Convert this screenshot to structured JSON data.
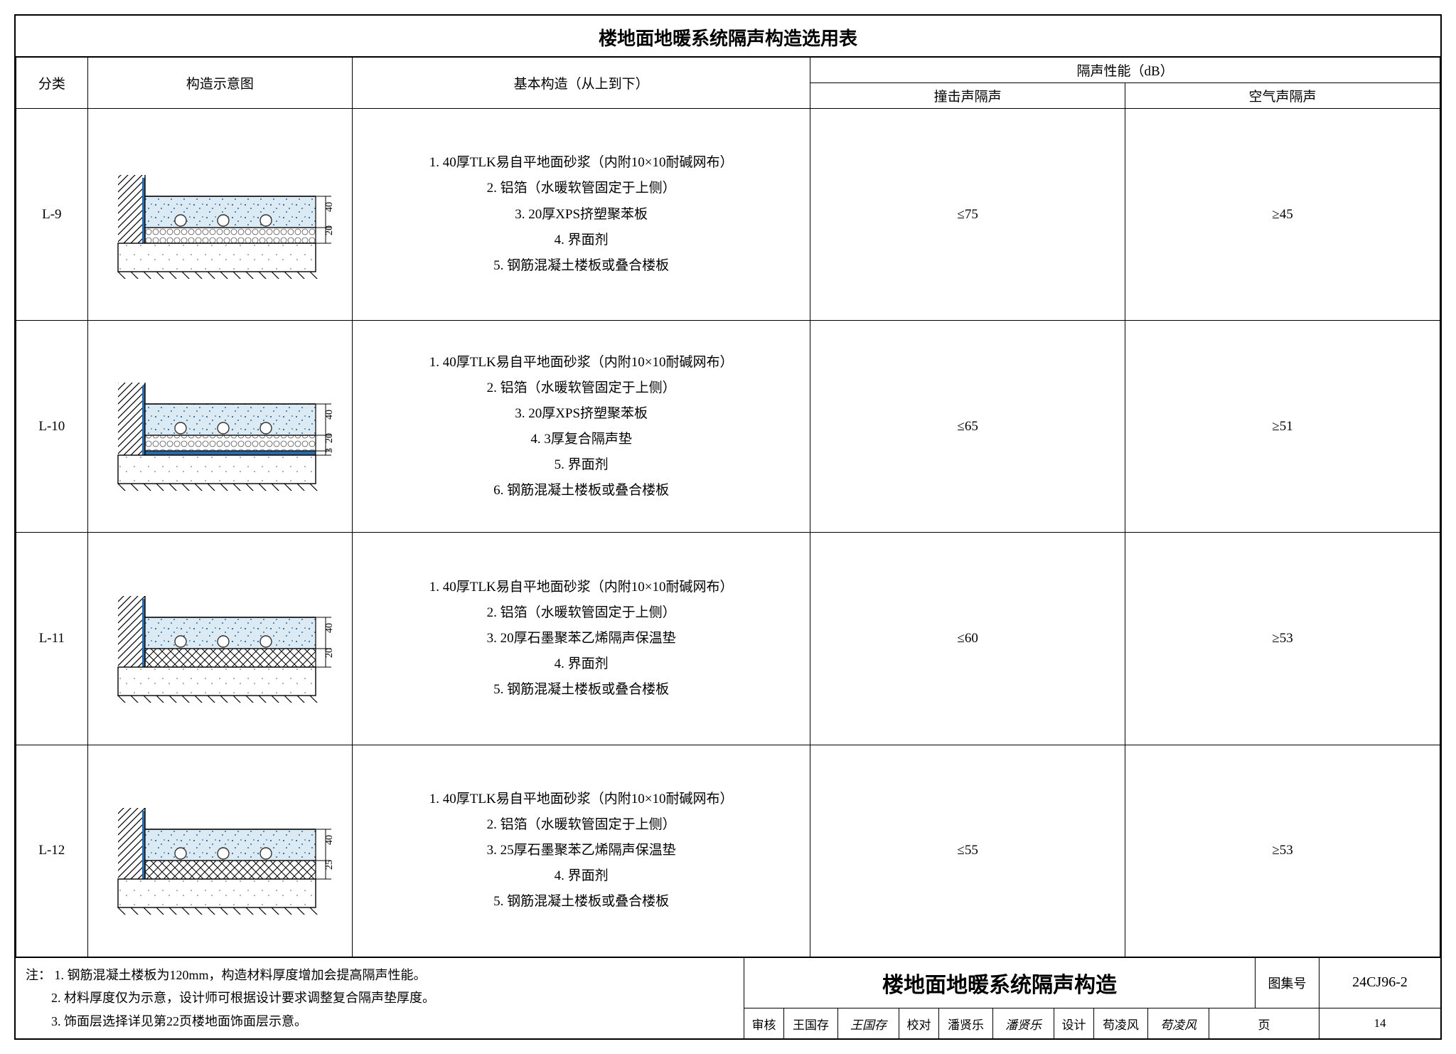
{
  "title": "楼地面地暖系统隔声构造选用表",
  "headers": {
    "category": "分类",
    "diagram": "构造示意图",
    "construction": "基本构造（从上到下）",
    "perf_group": "隔声性能（dB）",
    "impact": "撞击声隔声",
    "air": "空气声隔声"
  },
  "rows": [
    {
      "id": "L-9",
      "items": [
        "1. 40厚TLK易自平地面砂浆（内附10×10耐碱网布）",
        "2. 铝箔（水暖软管固定于上侧）",
        "3. 20厚XPS挤塑聚苯板",
        "4. 界面剂",
        "5. 钢筋混凝土楼板或叠合楼板"
      ],
      "impact": "≤75",
      "air": "≥45",
      "dims": [
        "40",
        "20"
      ],
      "layers": [
        "mortar",
        "xps"
      ]
    },
    {
      "id": "L-10",
      "items": [
        "1. 40厚TLK易自平地面砂浆（内附10×10耐碱网布）",
        "2. 铝箔（水暖软管固定于上侧）",
        "3. 20厚XPS挤塑聚苯板",
        "4. 3厚复合隔声垫",
        "5. 界面剂",
        "6. 钢筋混凝土楼板或叠合楼板"
      ],
      "impact": "≤65",
      "air": "≥51",
      "dims": [
        "40",
        "20",
        "3"
      ],
      "layers": [
        "mortar",
        "xps",
        "pad"
      ]
    },
    {
      "id": "L-11",
      "items": [
        "1. 40厚TLK易自平地面砂浆（内附10×10耐碱网布）",
        "2. 铝箔（水暖软管固定于上侧）",
        "3. 20厚石墨聚苯乙烯隔声保温垫",
        "4. 界面剂",
        "5. 钢筋混凝土楼板或叠合楼板"
      ],
      "impact": "≤60",
      "air": "≥53",
      "dims": [
        "40",
        "20"
      ],
      "layers": [
        "mortar",
        "hatch"
      ]
    },
    {
      "id": "L-12",
      "items": [
        "1. 40厚TLK易自平地面砂浆（内附10×10耐碱网布）",
        "2. 铝箔（水暖软管固定于上侧）",
        "3. 25厚石墨聚苯乙烯隔声保温垫",
        "4. 界面剂",
        "5. 钢筋混凝土楼板或叠合楼板"
      ],
      "impact": "≤55",
      "air": "≥53",
      "dims": [
        "40",
        "25"
      ],
      "layers": [
        "mortar",
        "hatch"
      ]
    }
  ],
  "notes_label": "注：",
  "notes": [
    "1. 钢筋混凝土楼板为120mm，构造材料厚度增加会提高隔声性能。",
    "2. 材料厚度仅为示意，设计师可根据设计要求调整复合隔声垫厚度。",
    "3. 饰面层选择详见第22页楼地面饰面层示意。"
  ],
  "titleblock": {
    "title": "楼地面地暖系统隔声构造",
    "set_label": "图集号",
    "set_code": "24CJ96-2",
    "page_label": "页",
    "page_no": "14",
    "roles": [
      {
        "label": "审核",
        "name": "王国存",
        "sig": "王国存"
      },
      {
        "label": "校对",
        "name": "潘贤乐",
        "sig": "潘贤乐"
      },
      {
        "label": "设计",
        "name": "苟凌风",
        "sig": "苟凌风"
      }
    ]
  },
  "colors": {
    "mortar_fill": "#dbeaf3",
    "mortar_speckle": "#2a6aa8",
    "xps_stroke": "#555",
    "pad_fill": "#2a6aa8",
    "slab_fill": "#fff",
    "hatch": "#000",
    "edge_strip": "#2a6aa8",
    "pipe_stroke": "#333"
  },
  "layer_heights": {
    "mortar": 44,
    "xps": 22,
    "hatch": 26,
    "pad": 6
  }
}
